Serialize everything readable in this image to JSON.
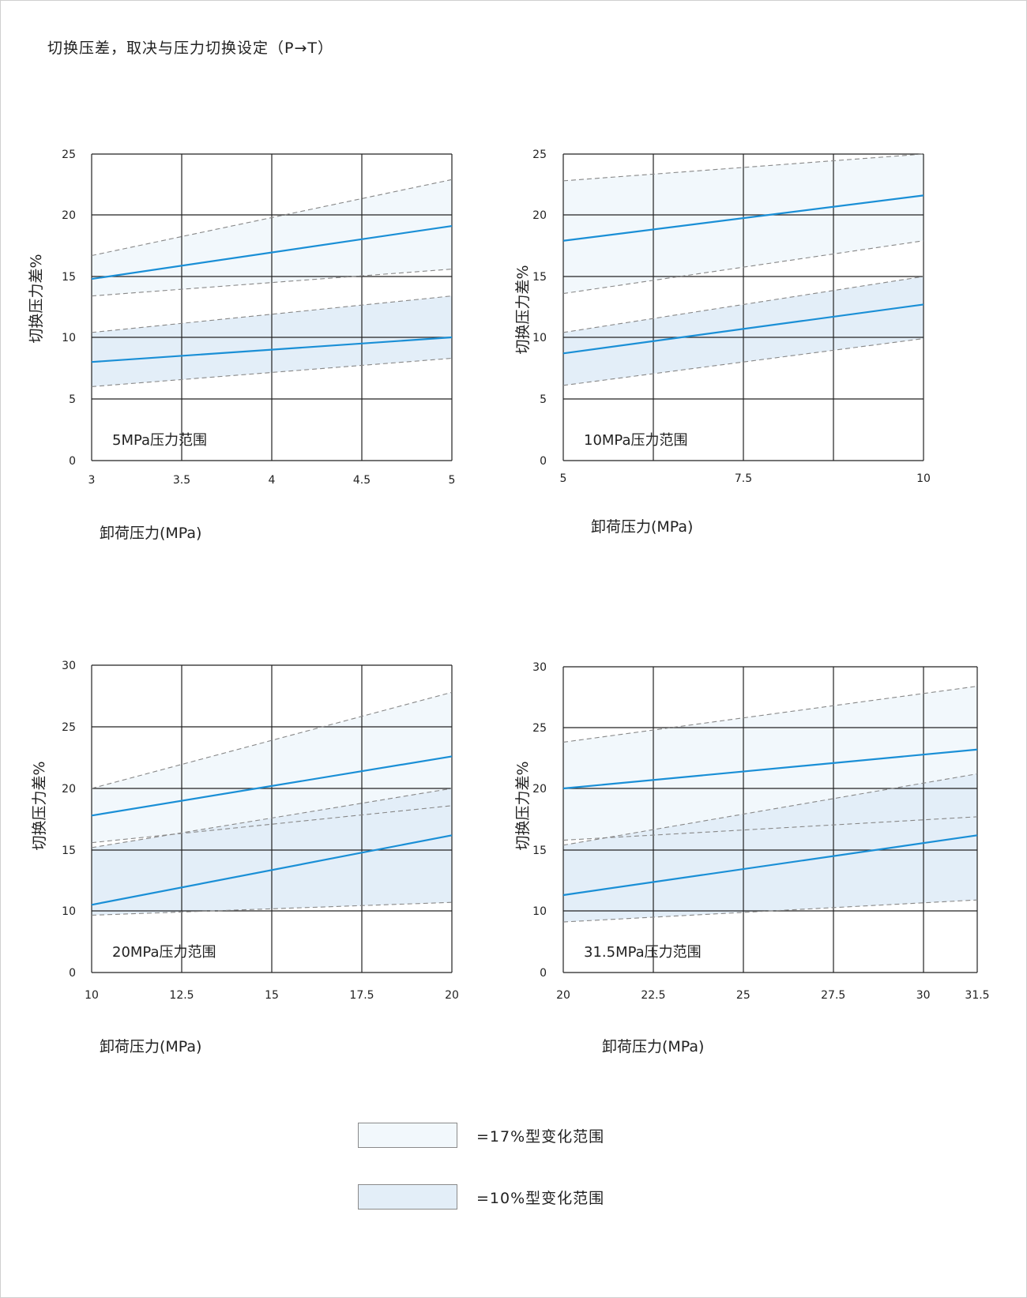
{
  "page": {
    "title": "切换压差，取决与压力切换设定（P→T）"
  },
  "colors": {
    "band17": "#f2f8fc",
    "band10": "#e3eef8",
    "solid_line": "#1a8fd6",
    "dashed_line": "#888888",
    "grid": "#222222"
  },
  "legend": [
    {
      "label": "=17%型变化范围",
      "color_key": "band17"
    },
    {
      "label": "=10%型变化范围",
      "color_key": "band10"
    }
  ],
  "chart_data": [
    {
      "type": "line",
      "title": "5MPa压力范围",
      "xlabel": "卸荷压力(MPa)",
      "ylabel": "切换压力差%",
      "x_ticks": [
        "3",
        "3.5",
        "4",
        "4.5",
        "5"
      ],
      "y_ticks": [
        "0",
        "5",
        "10",
        "15",
        "20",
        "25"
      ],
      "xlim": [
        3,
        5
      ],
      "ylim": [
        0,
        25
      ],
      "bands": [
        {
          "name": "=17%型变化范围",
          "color_key": "band17",
          "x": [
            3,
            5
          ],
          "upper": [
            16.7,
            22.9
          ],
          "lower": [
            13.4,
            15.6
          ],
          "center": [
            14.8,
            19.1
          ]
        },
        {
          "name": "=10%型变化范围",
          "color_key": "band10",
          "x": [
            3,
            5
          ],
          "upper": [
            10.4,
            13.4
          ],
          "lower": [
            6.0,
            8.3
          ],
          "center": [
            8.0,
            10.0
          ]
        }
      ]
    },
    {
      "type": "line",
      "title": "10MPa压力范围",
      "xlabel": "卸荷压力(MPa)",
      "ylabel": "切换压力差%",
      "x_ticks": [
        "5",
        "7.5",
        "10"
      ],
      "y_ticks": [
        "0",
        "5",
        "10",
        "15",
        "20",
        "25"
      ],
      "xlim": [
        5,
        10
      ],
      "ylim": [
        0,
        25
      ],
      "bands": [
        {
          "name": "=17%型变化范围",
          "color_key": "band17",
          "x": [
            5,
            10
          ],
          "upper": [
            22.8,
            25.0
          ],
          "lower": [
            13.6,
            17.9
          ],
          "center": [
            17.9,
            21.6
          ]
        },
        {
          "name": "=10%型变化范围",
          "color_key": "band10",
          "x": [
            5,
            10
          ],
          "upper": [
            10.4,
            15.0
          ],
          "lower": [
            6.1,
            9.9
          ],
          "center": [
            8.7,
            12.7
          ]
        }
      ]
    },
    {
      "type": "line",
      "title": "20MPa压力范围",
      "xlabel": "卸荷压力(MPa)",
      "ylabel": "切换压力差%",
      "x_ticks": [
        "10",
        "12.5",
        "15",
        "17.5",
        "20"
      ],
      "y_ticks": [
        "0",
        "10",
        "15",
        "20",
        "25",
        "30"
      ],
      "xlim": [
        10,
        20
      ],
      "ylim": [
        0,
        30
      ],
      "bands": [
        {
          "name": "=17%型变化范围",
          "color_key": "band17",
          "x": [
            10,
            20
          ],
          "upper": [
            20.0,
            27.8
          ],
          "lower": [
            15.6,
            18.6
          ],
          "center": [
            17.8,
            22.6
          ]
        },
        {
          "name": "=10%型变化范围",
          "color_key": "band10",
          "x": [
            10,
            20
          ],
          "upper": [
            15.2,
            20.0
          ],
          "lower": [
            9.3,
            10.7
          ],
          "center": [
            10.5,
            16.2
          ]
        }
      ]
    },
    {
      "type": "line",
      "title": "31.5MPa压力范围",
      "xlabel": "卸荷压力(MPa)",
      "ylabel": "切换压力差%",
      "x_ticks": [
        "20",
        "22.5",
        "25",
        "27.5",
        "30",
        "31.5"
      ],
      "y_ticks": [
        "0",
        "10",
        "15",
        "20",
        "25",
        "30"
      ],
      "xlim": [
        20,
        31.5
      ],
      "ylim": [
        0,
        30
      ],
      "bands": [
        {
          "name": "=17%型变化范围",
          "color_key": "band17",
          "x": [
            20,
            31.5
          ],
          "upper": [
            23.8,
            28.4
          ],
          "lower": [
            15.8,
            17.7
          ],
          "center": [
            20.0,
            23.2
          ]
        },
        {
          "name": "=10%型变化范围",
          "color_key": "band10",
          "x": [
            20,
            31.5
          ],
          "upper": [
            15.4,
            21.2
          ],
          "lower": [
            8.2,
            10.9
          ],
          "center": [
            11.3,
            16.2
          ]
        }
      ]
    }
  ]
}
